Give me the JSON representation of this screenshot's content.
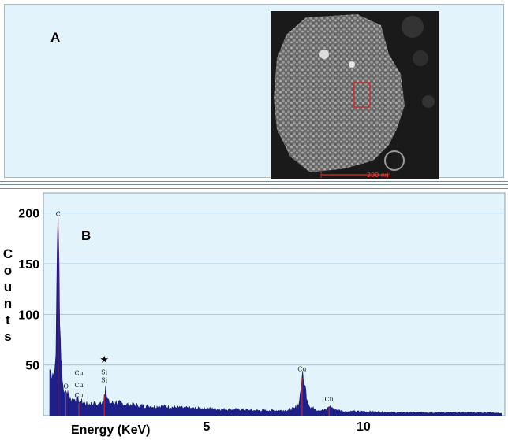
{
  "panel_a": {
    "label": "A",
    "scale_label": "200 nm"
  },
  "chart_data": {
    "type": "area",
    "panel_label": "B",
    "xlabel": "Energy (KeV)",
    "ylabel": "Counts",
    "x_ticks": [
      5,
      10
    ],
    "y_ticks": [
      50,
      100,
      150,
      200
    ],
    "xlim": [
      -0.2,
      14.5
    ],
    "ylim": [
      0,
      220
    ],
    "grid": true,
    "series": [
      {
        "x": [
          0.0,
          0.1,
          0.15,
          0.2,
          0.23,
          0.25,
          0.27,
          0.3,
          0.35,
          0.4,
          0.45,
          0.5,
          0.53,
          0.6,
          0.7,
          0.8,
          0.88,
          0.93,
          1.0,
          1.1,
          1.2,
          1.4,
          1.5,
          1.6,
          1.7,
          1.74,
          1.78,
          1.82,
          1.9,
          2.1,
          2.4,
          2.8,
          3.2,
          3.6,
          4.0,
          4.5,
          5.0,
          5.5,
          6.0,
          6.5,
          7.0,
          7.5,
          7.8,
          7.95,
          8.04,
          8.12,
          8.25,
          8.45,
          8.7,
          8.83,
          8.9,
          8.98,
          9.1,
          9.4,
          10.0,
          11.0,
          12.0,
          13.0,
          14.0,
          14.4
        ],
        "y": [
          45,
          42,
          40,
          60,
          140,
          185,
          196,
          150,
          60,
          35,
          22,
          25,
          23,
          21,
          15,
          16,
          17,
          13,
          14,
          12,
          11,
          12,
          10,
          12,
          14,
          21,
          29,
          17,
          12,
          13,
          11,
          10,
          9,
          9,
          8,
          7,
          7,
          6,
          6,
          5,
          5,
          5,
          7,
          12,
          38,
          30,
          10,
          6,
          5,
          6,
          9,
          8,
          6,
          4,
          4,
          3,
          3,
          3,
          3,
          2
        ]
      }
    ],
    "peaks": [
      {
        "label": "C",
        "x": 0.27,
        "y": 197
      },
      {
        "label": "O",
        "x": 0.52,
        "y": 27
      },
      {
        "label": "Cu",
        "x": 0.93,
        "y": 40
      },
      {
        "label": "Cu",
        "x": 0.93,
        "y": 28
      },
      {
        "label": "Cu",
        "x": 0.93,
        "y": 18
      },
      {
        "label": "Si",
        "x": 1.74,
        "y": 33
      },
      {
        "label": "Si",
        "x": 1.74,
        "y": 41
      },
      {
        "label": "★",
        "x": 1.74,
        "y": 52
      },
      {
        "label": "Cu",
        "x": 8.04,
        "y": 44
      },
      {
        "label": "Cu",
        "x": 8.9,
        "y": 14
      }
    ]
  }
}
